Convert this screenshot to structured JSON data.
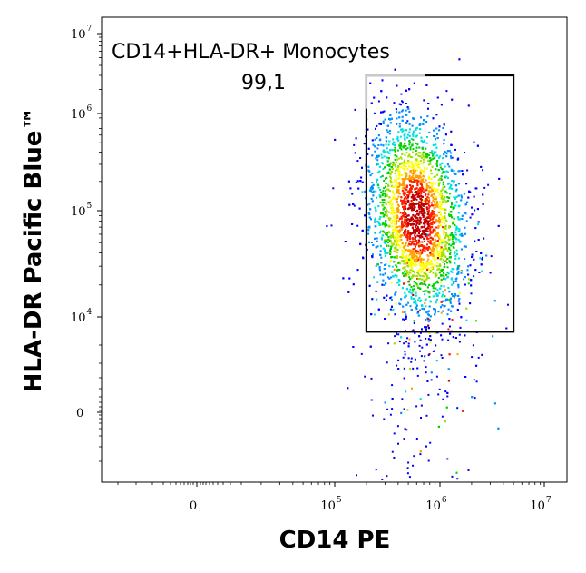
{
  "chart_data": {
    "type": "scatter",
    "subtype": "flow-cytometry-density-dot-plot",
    "xlabel": "CD14 PE",
    "ylabel": "HLA-DR Pacific Blue™",
    "x_scale": "biexponential",
    "y_scale": "biexponential",
    "x_ticks": [
      {
        "base": "0",
        "exp": ""
      },
      {
        "base": "10",
        "exp": "5"
      },
      {
        "base": "10",
        "exp": "6"
      },
      {
        "base": "10",
        "exp": "7"
      }
    ],
    "y_ticks": [
      {
        "base": "0",
        "exp": ""
      },
      {
        "base": "10",
        "exp": "4"
      },
      {
        "base": "10",
        "exp": "5"
      },
      {
        "base": "10",
        "exp": "6"
      },
      {
        "base": "10",
        "exp": "7"
      }
    ],
    "gate": {
      "name": "CD14+HLA-DR+ Monocytes",
      "percent": "99,1",
      "x_range": [
        200000,
        5000000
      ],
      "y_range": [
        7000,
        3000000
      ]
    },
    "population": {
      "center_x": 600000,
      "center_y": 90000,
      "density_colors": [
        "#0000ff",
        "#0090ff",
        "#00e0e0",
        "#00d000",
        "#a0e000",
        "#ffff00",
        "#ffa000",
        "#ff2000",
        "#c00000"
      ]
    },
    "grid": false,
    "legend": "none"
  }
}
